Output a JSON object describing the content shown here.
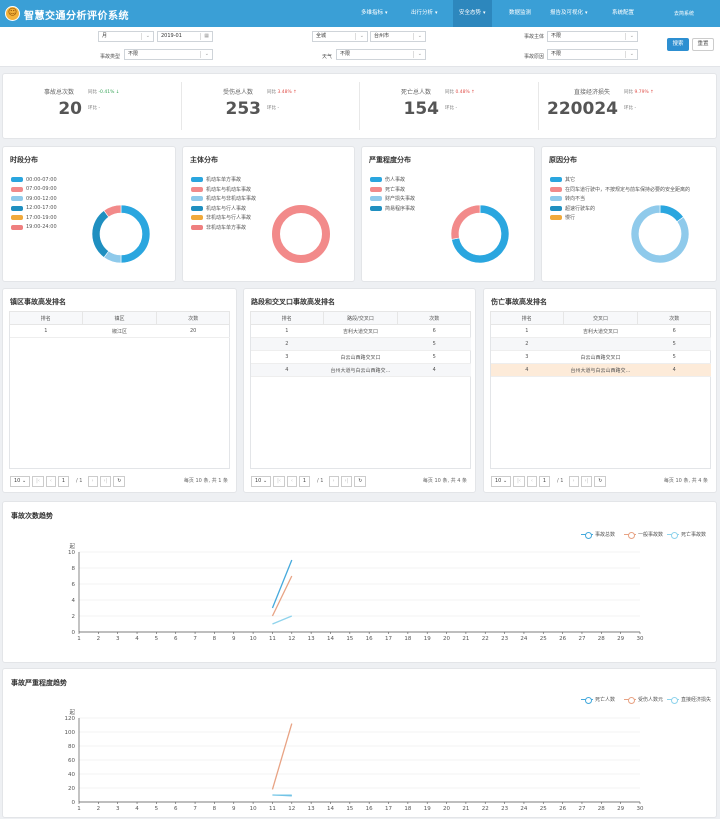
{
  "app": {
    "title": "智慧交通分析评价系统",
    "logo": "logo-icon"
  },
  "nav": [
    {
      "label": "多维指标",
      "caret": true,
      "active": false
    },
    {
      "label": "出行分析",
      "caret": true,
      "active": false
    },
    {
      "label": "安全态势",
      "caret": true,
      "active": true
    },
    {
      "label": "数据监测",
      "caret": false,
      "active": false
    },
    {
      "label": "报告及可视化",
      "caret": true,
      "active": false
    },
    {
      "label": "系统配置",
      "caret": false,
      "active": false
    }
  ],
  "user": "去简系统",
  "filters": {
    "period": "月",
    "date": "2019-01",
    "region_label": "",
    "region": "全城",
    "city": "台州市",
    "subject_label": "事故主体",
    "subject": "不限",
    "type_label": "事故类型",
    "type": "不限",
    "weather_label": "天气",
    "weather": "不限",
    "cause_label": "事故原因",
    "cause": "不限",
    "search": "搜索",
    "reset": "重置"
  },
  "stats": [
    {
      "label": "事故总次数",
      "value": "20",
      "yoy_label": "同比",
      "yoy": "-0.41% ↓",
      "yoy_dir": "down",
      "mom_label": "环比",
      "mom": "-"
    },
    {
      "label": "受伤总人数",
      "value": "253",
      "yoy_label": "同比",
      "yoy": "3.48% ↑",
      "yoy_dir": "up",
      "mom_label": "环比",
      "mom": "-"
    },
    {
      "label": "死亡总人数",
      "value": "154",
      "yoy_label": "同比",
      "yoy": "0.48% ↑",
      "yoy_dir": "up",
      "mom_label": "环比",
      "mom": "-"
    },
    {
      "label": "直接经济损失",
      "value": "220024",
      "yoy_label": "同比",
      "yoy": "9.79% ↑",
      "yoy_dir": "up",
      "mom_label": "环比",
      "mom": "-"
    }
  ],
  "donuts": [
    {
      "title": "时段分布",
      "legend": [
        {
          "label": "00:00-07:00",
          "color": "#2aa6df"
        },
        {
          "label": "07:00-09:00",
          "color": "#f28a8a"
        },
        {
          "label": "09:00-12:00",
          "color": "#8fcaeb"
        },
        {
          "label": "12:00-17:00",
          "color": "#1f8fc0"
        },
        {
          "label": "17:00-19:00",
          "color": "#f0a93b"
        },
        {
          "label": "19:00-24:00",
          "color": "#ef7f7f"
        }
      ],
      "slices": [
        {
          "value": 50,
          "color": "#2aa6df"
        },
        {
          "value": 10,
          "color": "#8fcaeb"
        },
        {
          "value": 30,
          "color": "#1f8fc0"
        },
        {
          "value": 10,
          "color": "#f28a8a"
        }
      ]
    },
    {
      "title": "主体分布",
      "legend": [
        {
          "label": "机动车单方事故",
          "color": "#2aa6df"
        },
        {
          "label": "机动车与机动车事故",
          "color": "#f28a8a"
        },
        {
          "label": "机动车与非机动车事故",
          "color": "#8fcaeb"
        },
        {
          "label": "机动车与行人事故",
          "color": "#1f8fc0"
        },
        {
          "label": "非机动车与行人事故",
          "color": "#f0a93b"
        },
        {
          "label": "非机动车单方事故",
          "color": "#ef7f7f"
        }
      ],
      "slices": [
        {
          "value": 100,
          "color": "#f28a8a"
        }
      ]
    },
    {
      "title": "严重程度分布",
      "legend": [
        {
          "label": "伤人事故",
          "color": "#2aa6df"
        },
        {
          "label": "死亡事故",
          "color": "#f28a8a"
        },
        {
          "label": "财产损失事故",
          "color": "#8fcaeb"
        },
        {
          "label": "简易程序事故",
          "color": "#1f8fc0"
        }
      ],
      "slices": [
        {
          "value": 72,
          "color": "#2aa6df"
        },
        {
          "value": 28,
          "color": "#f28a8a"
        }
      ]
    },
    {
      "title": "原因分布",
      "legend": [
        {
          "label": "其它",
          "color": "#2aa6df"
        },
        {
          "label": "在同车道行驶中，不按规定与前车保持必要的安全距离的",
          "color": "#f28a8a"
        },
        {
          "label": "转向不当",
          "color": "#8fcaeb"
        },
        {
          "label": "超速行驶车的",
          "color": "#1f8fc0"
        },
        {
          "label": "慢行",
          "color": "#f0a93b"
        }
      ],
      "slices": [
        {
          "value": 15,
          "color": "#2aa6df"
        },
        {
          "value": 85,
          "color": "#8fcaeb"
        }
      ]
    }
  ],
  "rank_tables": [
    {
      "title": "镇区事故高发排名",
      "headers": [
        "排名",
        "镇区",
        "次数"
      ],
      "rows": [
        [
          "1",
          "椒江区",
          "20"
        ]
      ],
      "pager": {
        "size": "10",
        "page": "1",
        "total_pages": "/ 1",
        "info": "每页 10 条, 共 1 条"
      }
    },
    {
      "title": "路段和交叉口事故高发排名",
      "headers": [
        "排名",
        "路段/交叉口",
        "次数"
      ],
      "rows": [
        [
          "1",
          "吉利大道交叉口",
          "6"
        ],
        [
          "2",
          "",
          "5"
        ],
        [
          "3",
          "白云山西路交叉口",
          "5"
        ],
        [
          "4",
          "台州大道与白云山西路交…",
          "4"
        ]
      ],
      "pager": {
        "size": "10",
        "page": "1",
        "total_pages": "/ 1",
        "info": "每页 10 条, 共 4 条"
      }
    },
    {
      "title": "伤亡事故高发排名",
      "headers": [
        "排名",
        "交叉口",
        "次数"
      ],
      "rows": [
        [
          "1",
          "吉利大道交叉口",
          "6"
        ],
        [
          "2",
          "",
          "5"
        ],
        [
          "3",
          "白云山西路交叉口",
          "5"
        ],
        [
          "4",
          "台州大道与白云山西路交…",
          "4"
        ]
      ],
      "pager": {
        "size": "10",
        "page": "1",
        "total_pages": "/ 1",
        "info": "每页 10 条, 共 4 条"
      }
    }
  ],
  "chart_data": [
    {
      "type": "line",
      "title": "事故次数趋势",
      "ylabel": "起",
      "ylim": [
        0,
        10
      ],
      "yticks": [
        0,
        2,
        4,
        6,
        8,
        10
      ],
      "x": [
        1,
        2,
        3,
        4,
        5,
        6,
        7,
        8,
        9,
        10,
        11,
        12,
        13,
        14,
        15,
        16,
        17,
        18,
        19,
        20,
        21,
        22,
        23,
        24,
        25,
        26,
        27,
        28,
        29,
        30
      ],
      "series": [
        {
          "name": "事故总数",
          "color": "#45a9dc",
          "points": [
            [
              11,
              3
            ],
            [
              12,
              9
            ]
          ]
        },
        {
          "name": "一般事故数",
          "color": "#e8a384",
          "points": [
            [
              11,
              2
            ],
            [
              12,
              7
            ]
          ]
        },
        {
          "name": "死亡事故数",
          "color": "#8fd3ec",
          "points": [
            [
              11,
              1
            ],
            [
              12,
              2
            ]
          ]
        }
      ]
    },
    {
      "type": "line",
      "title": "事故严重程度趋势",
      "ylabel": "起",
      "ylim": [
        0,
        120
      ],
      "yticks": [
        0,
        20,
        40,
        60,
        80,
        100,
        120
      ],
      "x": [
        1,
        2,
        3,
        4,
        5,
        6,
        7,
        8,
        9,
        10,
        11,
        12,
        13,
        14,
        15,
        16,
        17,
        18,
        19,
        20,
        21,
        22,
        23,
        24,
        25,
        26,
        27,
        28,
        29,
        30
      ],
      "series": [
        {
          "name": "死亡人数",
          "color": "#45a9dc",
          "points": [
            [
              11,
              10
            ],
            [
              12,
              9
            ]
          ]
        },
        {
          "name": "受伤人数元",
          "color": "#e8a384",
          "points": [
            [
              11,
              18
            ],
            [
              12,
              112
            ]
          ]
        },
        {
          "name": "直接经济损失",
          "color": "#8fd3ec",
          "points": [
            [
              11,
              10
            ],
            [
              12,
              10
            ]
          ]
        }
      ]
    }
  ]
}
